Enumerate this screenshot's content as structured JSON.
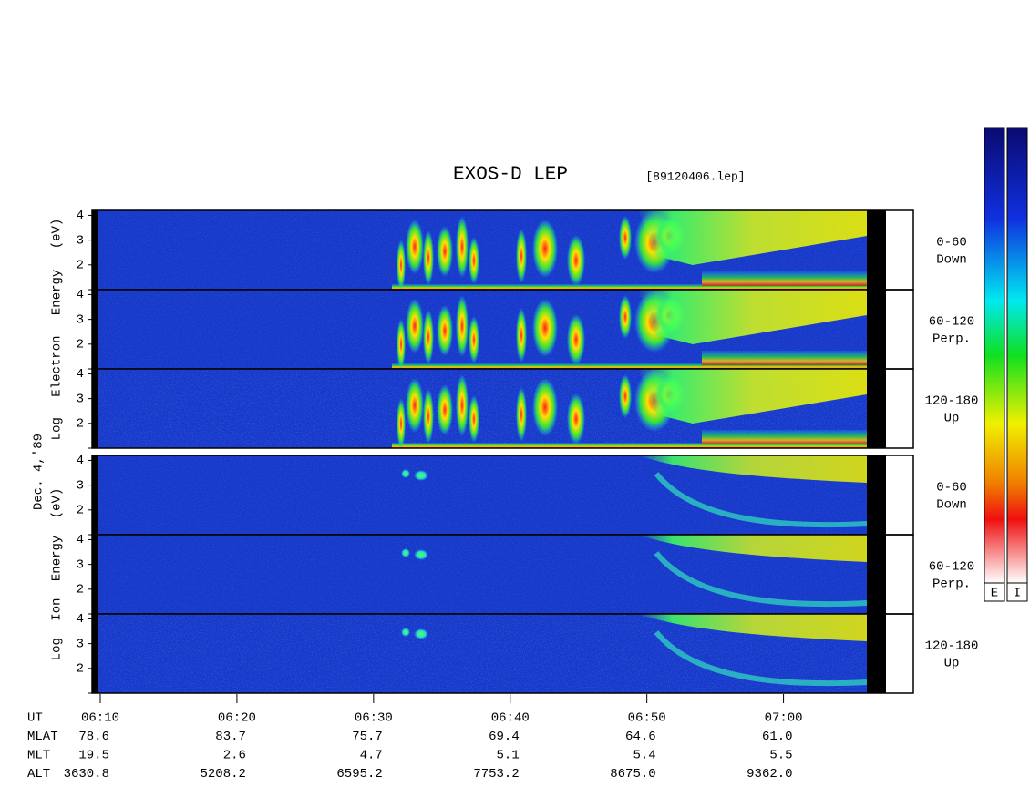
{
  "header": {
    "title": "EXOS-D LEP",
    "file": "[89120406.lep]"
  },
  "date": "Dec. 4,'89",
  "groups": [
    {
      "ylabel": "Log Electron Energy (eV)",
      "panels": [
        {
          "label": [
            "0-60",
            "Down"
          ]
        },
        {
          "label": [
            "60-120",
            "Perp."
          ]
        },
        {
          "label": [
            "120-180",
            "Up"
          ]
        }
      ]
    },
    {
      "ylabel": "Log Ion Energy (eV)",
      "panels": [
        {
          "label": [
            "0-60",
            "Down"
          ]
        },
        {
          "label": [
            "60-120",
            "Perp."
          ]
        },
        {
          "label": [
            "120-180",
            "Up"
          ]
        }
      ]
    }
  ],
  "ylim": [
    1,
    4.2
  ],
  "yticks": [
    {
      "value": 1,
      "label": null
    },
    2,
    3,
    4
  ],
  "xlim": [
    9.4,
    69.5
  ],
  "xticks": [
    {
      "value": 10,
      "label": "06:10"
    },
    {
      "value": 20,
      "label": "06:20"
    },
    {
      "value": 30,
      "label": "06:30"
    },
    {
      "value": 40,
      "label": "06:40"
    },
    {
      "value": 50,
      "label": "06:50"
    },
    {
      "value": 60,
      "label": "07:00"
    }
  ],
  "ephemeris": {
    "rows": [
      {
        "name": "UT"
      },
      {
        "name": "MLAT",
        "values": [
          "78.6",
          "83.7",
          "75.7",
          "69.4",
          "64.6",
          "61.0"
        ]
      },
      {
        "name": "MLT",
        "values": [
          "19.5",
          "2.6",
          "4.7",
          "5.1",
          "5.4",
          "5.5"
        ]
      },
      {
        "name": "ALT",
        "values": [
          "3630.8",
          "5208.2",
          "6595.2",
          "7753.2",
          "8675.0",
          "9362.0"
        ]
      }
    ]
  },
  "colorbars": [
    "E",
    "I"
  ]
}
